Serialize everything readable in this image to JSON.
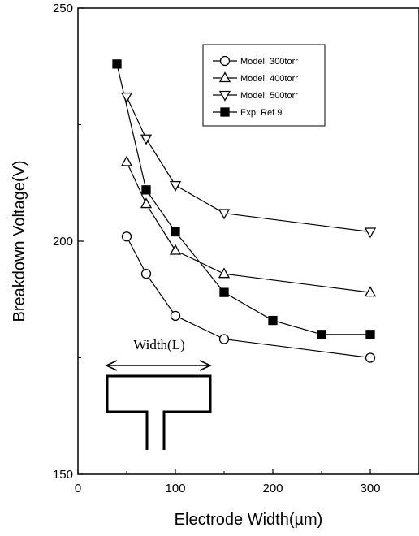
{
  "chart_data": {
    "type": "line",
    "xlabel": "Electrode Width(µm)",
    "ylabel": "Breakdown Voltage(V)",
    "xlim": [
      0,
      350
    ],
    "ylim": [
      150,
      250
    ],
    "xticks": [
      0,
      100,
      200,
      300
    ],
    "yticks": [
      150,
      200,
      250
    ],
    "grid": false,
    "legend_position": "top-right",
    "series": [
      {
        "name": "Model, 300torr",
        "marker": "circle-open",
        "x": [
          50,
          70,
          100,
          150,
          300
        ],
        "y": [
          201,
          193,
          184,
          179,
          175
        ]
      },
      {
        "name": "Model, 400torr",
        "marker": "triangle-up-open",
        "x": [
          50,
          70,
          100,
          150,
          300
        ],
        "y": [
          217,
          208,
          198,
          193,
          189
        ]
      },
      {
        "name": "Model, 500torr",
        "marker": "triangle-down-open",
        "x": [
          50,
          70,
          100,
          150,
          300
        ],
        "y": [
          231,
          222,
          212,
          206,
          202
        ]
      },
      {
        "name": "Exp, Ref.9",
        "marker": "square-filled",
        "x": [
          40,
          70,
          100,
          150,
          200,
          250,
          300
        ],
        "y": [
          238,
          211,
          202,
          189,
          183,
          180,
          180
        ]
      }
    ],
    "inset": {
      "label": "Width(L)",
      "description_icon": "electrode-t-shape-diagram"
    }
  }
}
